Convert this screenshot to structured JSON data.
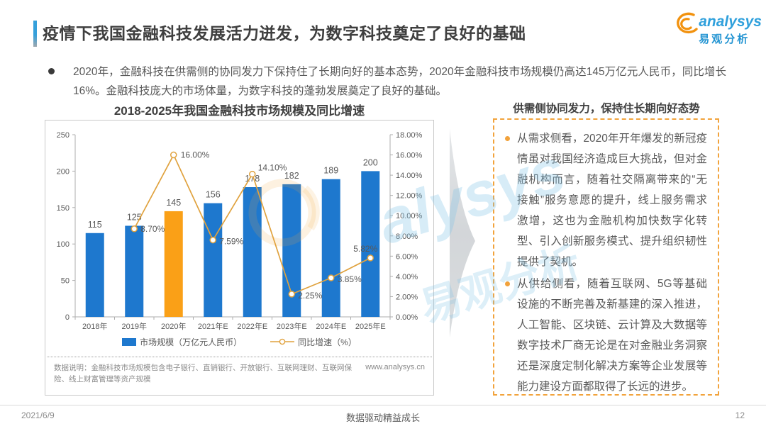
{
  "header": {
    "title": "疫情下我国金融科技发展活力迸发，为数字科技奠定了良好的基础",
    "logo": {
      "brand": "analysys",
      "brand_cn": "易观分析"
    }
  },
  "summary": {
    "text": "2020年，金融科技在供需侧的协同发力下保持住了长期向好的基本态势，2020年金融科技市场规模仍高达145万亿元人民币，同比增长16%。金融科技庞大的市场体量，为数字科技的蓬勃发展奠定了良好的基础。"
  },
  "chart_data": {
    "type": "bar+line",
    "title": "2018-2025年我国金融科技市场规模及同比增速",
    "categories": [
      "2018年",
      "2019年",
      "2020年",
      "2021年E",
      "2022年E",
      "2023年E",
      "2024年E",
      "2025年E"
    ],
    "series": [
      {
        "name": "市场规模（万亿元人民币）",
        "type": "bar",
        "axis": "left",
        "values": [
          115,
          125,
          145,
          156,
          178,
          182,
          189,
          200
        ],
        "color": "#1E78CE",
        "highlight_index": 2,
        "highlight_color": "#FAA017"
      },
      {
        "name": "同比增速（%）",
        "type": "line",
        "axis": "right",
        "values": [
          null,
          8.7,
          16.0,
          7.59,
          14.1,
          2.25,
          3.85,
          5.82
        ],
        "point_labels": [
          null,
          "8.70%",
          "16.00%",
          "7.59%",
          "14.10%",
          "2.25%",
          "3.85%",
          "5.82%"
        ],
        "color": "#E0A23E"
      }
    ],
    "left_axis": {
      "min": 0,
      "max": 250,
      "ticks": [
        0,
        50,
        100,
        150,
        200,
        250
      ]
    },
    "right_axis": {
      "min": 0,
      "max": 18,
      "tick_labels": [
        "0.00%",
        "2.00%",
        "4.00%",
        "6.00%",
        "8.00%",
        "10.00%",
        "12.00%",
        "14.00%",
        "16.00%",
        "18.00%"
      ]
    },
    "grid": false,
    "legend_position": "bottom",
    "footnote": "数据说明：金融科技市场规模包含电子银行、直销银行、开放银行、互联网理财、互联网保险、线上财富管理等资产规模",
    "source_url": "www.analysys.cn"
  },
  "side_panel": {
    "title": "供需侧协同发力，保持住长期向好态势",
    "bullets": [
      "从需求侧看，2020年开年爆发的新冠疫情虽对我国经济造成巨大挑战，但对金融机构而言，随着社交隔离带来的“无接触”服务意愿的提升，线上服务需求激增，这也为金融机构加快数字化转型、引入创新服务模式、提升组织韧性提供了契机。",
      "从供给侧看，随着互联网、5G等基础设施的不断完善及新基建的深入推进，人工智能、区块链、云计算及大数据等数字技术厂商无论是在对金融业务洞察还是深度定制化解决方案等企业发展等能力建设方面都取得了长远的进步。"
    ]
  },
  "footer": {
    "date": "2021/6/9",
    "slogan": "数据驱动精益成长",
    "page": "12"
  },
  "colors": {
    "bar_blue": "#1E78CE",
    "bar_highlight_orange": "#FAA017",
    "line_orange": "#E0A23E",
    "accent_blue": "#35A0DB",
    "panel_border_orange": "#F2A33C",
    "watermark_blue": "#7EC3E8"
  }
}
